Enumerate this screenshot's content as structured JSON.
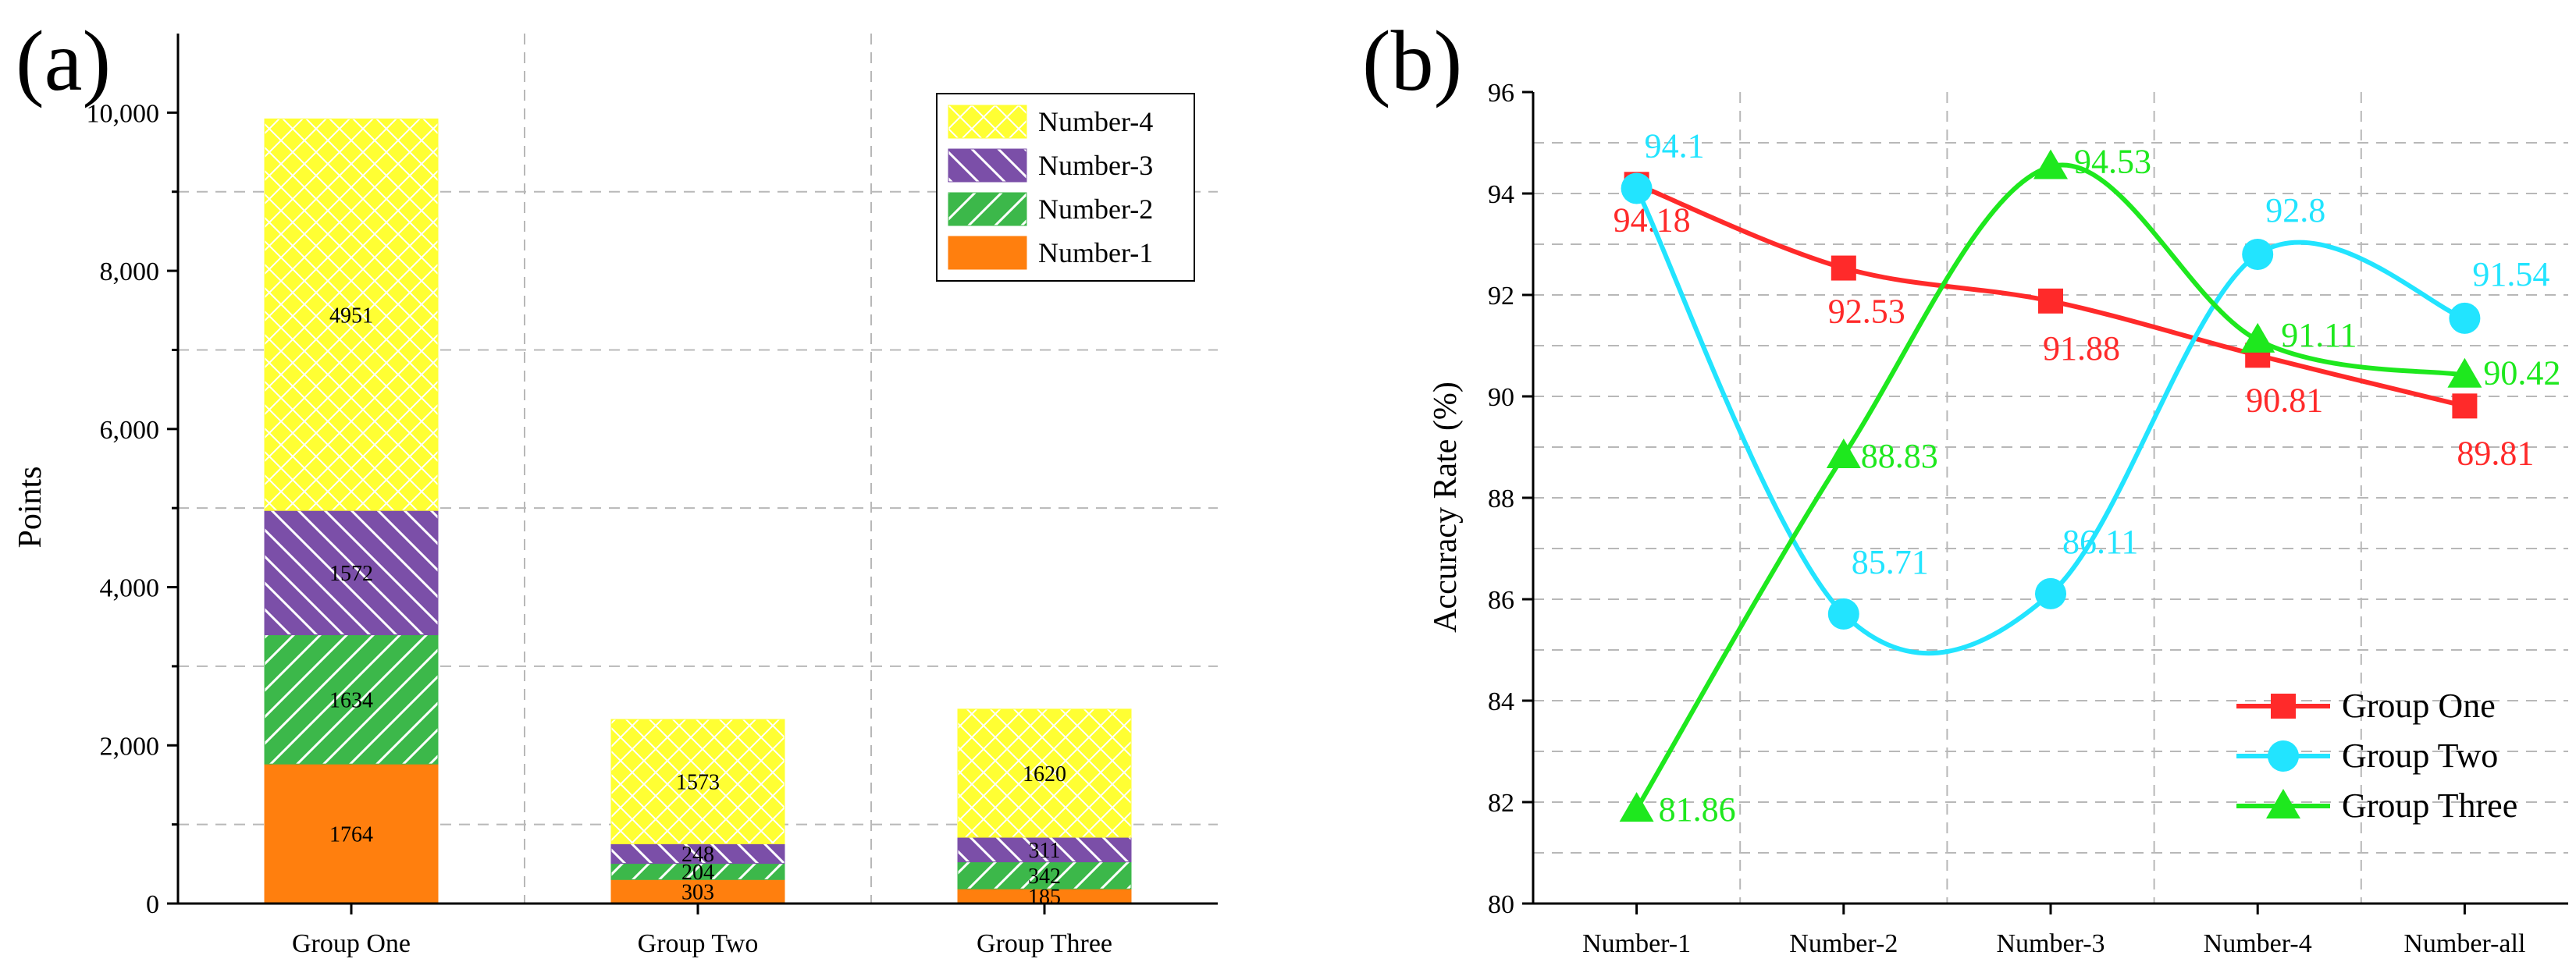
{
  "chart_data": [
    {
      "type": "bar",
      "panel_label": "(a)",
      "stacked": true,
      "title": "",
      "xlabel": "",
      "ylabel": "Points",
      "ylim": [
        0,
        11000
      ],
      "yticks": [
        "0",
        "2,000",
        "4,000",
        "6,000",
        "8,000",
        "10,000"
      ],
      "ytick_values": [
        0,
        2000,
        4000,
        6000,
        8000,
        10000
      ],
      "categories": [
        "Group One",
        "Group Two",
        "Group Three"
      ],
      "series": [
        {
          "name": "Number-1",
          "values": [
            1764,
            303,
            185
          ],
          "color": "#ff7f0e",
          "pattern": "solid"
        },
        {
          "name": "Number-2",
          "values": [
            1634,
            204,
            342
          ],
          "color": "#3cb84a",
          "pattern": "hatch"
        },
        {
          "name": "Number-3",
          "values": [
            1572,
            248,
            311
          ],
          "color": "#7b4fa8",
          "pattern": "hatch"
        },
        {
          "name": "Number-4",
          "values": [
            4951,
            1573,
            1620
          ],
          "color": "#ffff33",
          "pattern": "crosshatch"
        }
      ],
      "legend": [
        "Number-4",
        "Number-3",
        "Number-2",
        "Number-1"
      ],
      "legend_position": "top-right",
      "grid": true
    },
    {
      "type": "line",
      "panel_label": "(b)",
      "title": "",
      "xlabel": "",
      "ylabel": "Accuracy Rate (%)",
      "ylim": [
        80,
        96
      ],
      "yticks": [
        "80",
        "82",
        "84",
        "86",
        "88",
        "90",
        "92",
        "94",
        "96"
      ],
      "categories": [
        "Number-1",
        "Number-2",
        "Number-3",
        "Number-4",
        "Number-all"
      ],
      "series": [
        {
          "name": "Group One",
          "values": [
            94.18,
            92.53,
            91.88,
            90.81,
            89.81
          ],
          "labels": [
            "94.18",
            "92.53",
            "91.88",
            "90.81",
            "89.81"
          ],
          "color": "#ff2a2a",
          "marker": "square"
        },
        {
          "name": "Group Two",
          "values": [
            94.1,
            85.71,
            86.11,
            92.8,
            91.54
          ],
          "labels": [
            "94.1",
            "85.71",
            "86.11",
            "92.8",
            "91.54"
          ],
          "color": "#22e4ff",
          "marker": "circle"
        },
        {
          "name": "Group Three",
          "values": [
            81.86,
            88.83,
            94.53,
            91.11,
            90.42
          ],
          "labels": [
            "81.86",
            "88.83",
            "94.53",
            "91.11",
            "90.42"
          ],
          "color": "#1ee81e",
          "marker": "triangle"
        }
      ],
      "legend_position": "bottom-right",
      "grid": true
    }
  ]
}
